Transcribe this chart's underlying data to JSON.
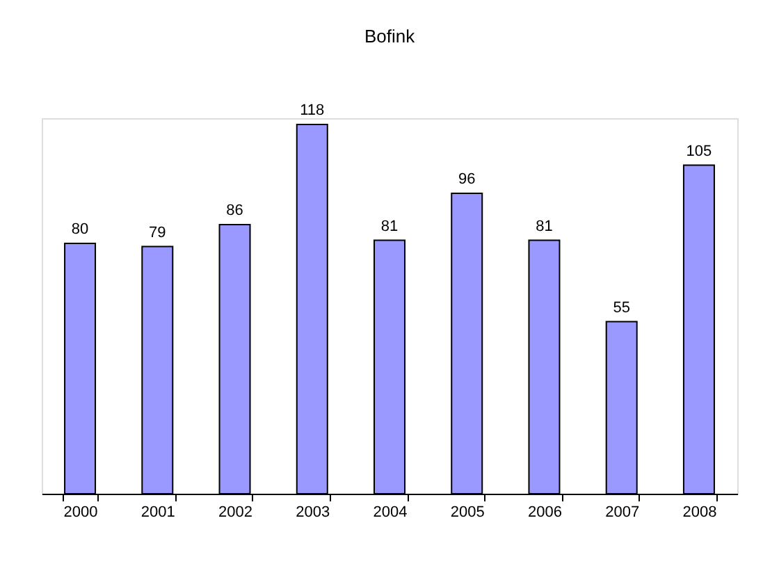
{
  "chart_data": {
    "type": "bar",
    "title": "Bofink",
    "categories": [
      "2000",
      "2001",
      "2002",
      "2003",
      "2004",
      "2005",
      "2006",
      "2007",
      "2008"
    ],
    "values": [
      80,
      79,
      86,
      118,
      81,
      96,
      81,
      55,
      105
    ],
    "color": "#9999ff",
    "data_labels": true,
    "tick_labels": "x"
  }
}
